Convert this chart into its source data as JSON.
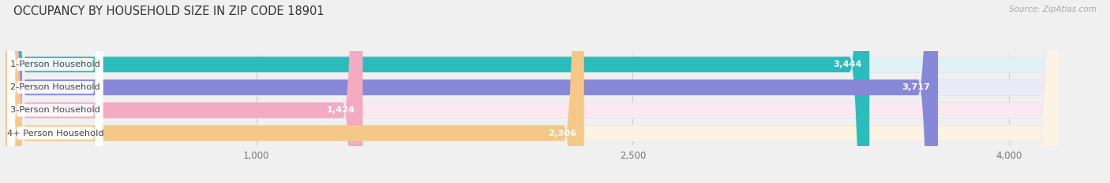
{
  "title": "OCCUPANCY BY HOUSEHOLD SIZE IN ZIP CODE 18901",
  "source": "Source: ZipAtlas.com",
  "categories": [
    "1-Person Household",
    "2-Person Household",
    "3-Person Household",
    "4+ Person Household"
  ],
  "values": [
    3444,
    3717,
    1424,
    2306
  ],
  "bar_colors": [
    "#2bbcbc",
    "#8888d8",
    "#f4aac0",
    "#f5c888"
  ],
  "bar_bg_colors": [
    "#dff2f5",
    "#eaeaf8",
    "#fce8f0",
    "#fdf3e3"
  ],
  "xlim_max": 4350,
  "data_max": 4200,
  "xticks": [
    1000,
    2500,
    4000
  ],
  "xtick_labels": [
    "1,000",
    "2,500",
    "4,000"
  ],
  "bg_color": "#f0f0f0",
  "bar_bg_outer": "#e0e0e8",
  "title_fontsize": 10.5,
  "bar_height": 0.68,
  "figsize": [
    14.06,
    2.33
  ],
  "dpi": 100,
  "label_badge_color": "#ffffff",
  "label_text_color": "#444444",
  "value_text_color": "#ffffff"
}
